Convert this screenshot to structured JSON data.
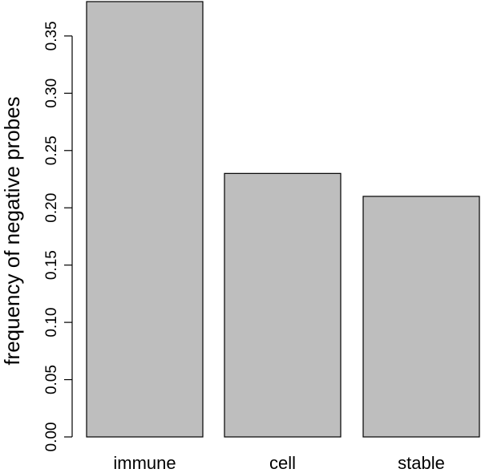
{
  "chart_data": {
    "type": "bar",
    "categories": [
      "immune",
      "cell",
      "stable"
    ],
    "values": [
      0.38,
      0.23,
      0.21
    ],
    "title": "",
    "xlabel": "",
    "ylabel": "frequency of negative probes",
    "ylim": [
      0,
      0.38
    ],
    "yticks": [
      0.0,
      0.05,
      0.1,
      0.15,
      0.2,
      0.25,
      0.3,
      0.35
    ],
    "ytick_labels": [
      "0.00",
      "0.05",
      "0.10",
      "0.15",
      "0.20",
      "0.25",
      "0.30",
      "0.35"
    ],
    "grid": false,
    "legend": "none",
    "colors": {
      "bar_fill": "#bebebe",
      "bar_stroke": "#000000"
    }
  }
}
